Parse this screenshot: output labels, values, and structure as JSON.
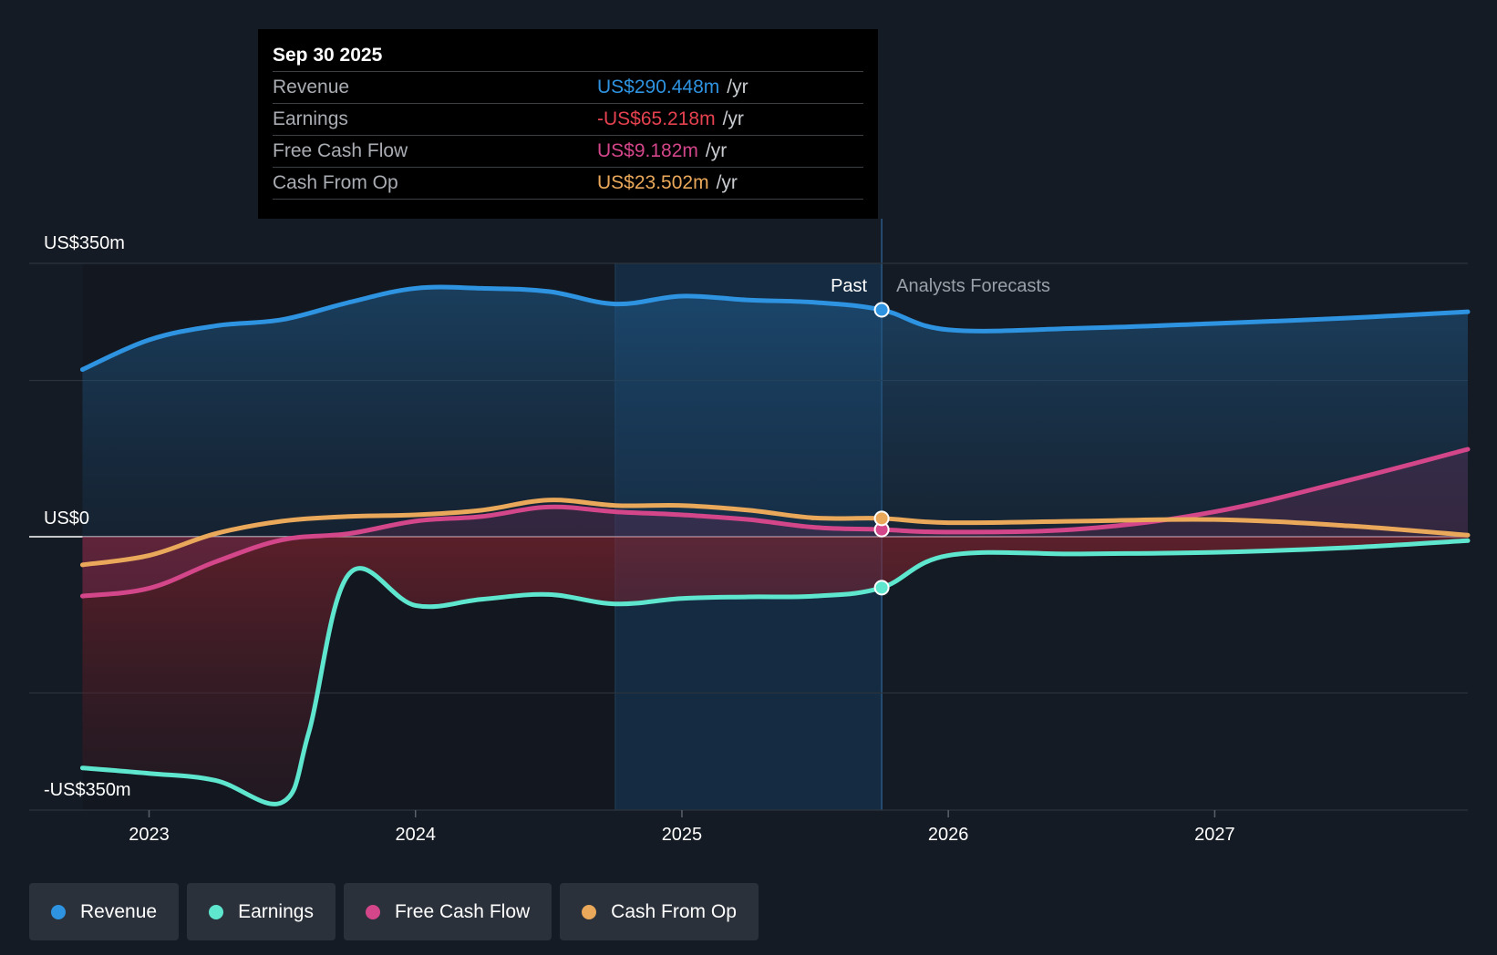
{
  "tooltip": {
    "date": "Sep 30 2025",
    "rows": [
      {
        "label": "Revenue",
        "value": "US$290.448m",
        "unit": "/yr",
        "color": "#2e93e0"
      },
      {
        "label": "Earnings",
        "value": "-US$65.218m",
        "unit": "/yr",
        "color": "#e5414f"
      },
      {
        "label": "Free Cash Flow",
        "value": "US$9.182m",
        "unit": "/yr",
        "color": "#d4468a"
      },
      {
        "label": "Cash From Op",
        "value": "US$23.502m",
        "unit": "/yr",
        "color": "#eaa85a"
      }
    ]
  },
  "labels": {
    "past": "Past",
    "forecasts": "Analysts Forecasts"
  },
  "legend": [
    {
      "label": "Revenue",
      "color": "#2e93e0"
    },
    {
      "label": "Earnings",
      "color": "#5ee6cf"
    },
    {
      "label": "Free Cash Flow",
      "color": "#d4468a"
    },
    {
      "label": "Cash From Op",
      "color": "#eaa85a"
    }
  ],
  "chart_data": {
    "type": "line",
    "title": "",
    "xlabel": "",
    "ylabel": "",
    "y_tick_labels": [
      {
        "value": 350,
        "label": "US$350m"
      },
      {
        "value": 0,
        "label": "US$0"
      },
      {
        "value": -350,
        "label": "-US$350m"
      }
    ],
    "ylim": [
      -350,
      350
    ],
    "xlim": [
      2022.55,
      2027.95
    ],
    "x_ticks": [
      2023,
      2024,
      2025,
      2026,
      2027
    ],
    "x_tick_labels": [
      "2023",
      "2024",
      "2025",
      "2026",
      "2027"
    ],
    "gridlines_y": [
      350,
      200,
      0,
      -200,
      -350
    ],
    "past_end_x": 2025.75,
    "highlight_start_x": 2024.75,
    "series": [
      {
        "name": "Revenue",
        "color": "#2e93e0",
        "x": [
          2022.75,
          2023.0,
          2023.25,
          2023.5,
          2023.75,
          2024.0,
          2024.25,
          2024.5,
          2024.75,
          2025.0,
          2025.25,
          2025.5,
          2025.75,
          2026.0,
          2026.5,
          2027.0,
          2027.5,
          2027.95
        ],
        "values": [
          214,
          252,
          270,
          278,
          300,
          318,
          318,
          314,
          298,
          308,
          303,
          300,
          290.448,
          265,
          267,
          273,
          280,
          288
        ]
      },
      {
        "name": "Earnings",
        "color": "#5ee6cf",
        "x": [
          2022.75,
          2023.0,
          2023.25,
          2023.5,
          2023.6,
          2023.75,
          2024.0,
          2024.25,
          2024.5,
          2024.75,
          2025.0,
          2025.25,
          2025.5,
          2025.75,
          2026.0,
          2026.5,
          2027.0,
          2027.5,
          2027.95
        ],
        "values": [
          -296,
          -303,
          -312,
          -340,
          -250,
          -48,
          -88,
          -80,
          -74,
          -86,
          -79,
          -77,
          -76,
          -65.218,
          -24,
          -22,
          -20,
          -14,
          -5
        ]
      },
      {
        "name": "Free Cash Flow",
        "color": "#d4468a",
        "x": [
          2022.75,
          2023.0,
          2023.25,
          2023.5,
          2023.75,
          2024.0,
          2024.25,
          2024.5,
          2024.75,
          2025.0,
          2025.25,
          2025.5,
          2025.75,
          2026.0,
          2026.5,
          2027.0,
          2027.5,
          2027.95
        ],
        "values": [
          -76,
          -66,
          -32,
          -4,
          4,
          20,
          26,
          38,
          32,
          28,
          22,
          12,
          9.182,
          6,
          10,
          32,
          72,
          112
        ]
      },
      {
        "name": "Cash From Op",
        "color": "#eaa85a",
        "x": [
          2022.75,
          2023.0,
          2023.25,
          2023.5,
          2023.75,
          2024.0,
          2024.25,
          2024.5,
          2024.75,
          2025.0,
          2025.25,
          2025.5,
          2025.75,
          2026.0,
          2026.5,
          2027.0,
          2027.5,
          2027.95
        ],
        "values": [
          -36,
          -24,
          4,
          20,
          26,
          28,
          34,
          47,
          40,
          40,
          34,
          24,
          23.502,
          18,
          20,
          22,
          14,
          2
        ]
      }
    ]
  }
}
